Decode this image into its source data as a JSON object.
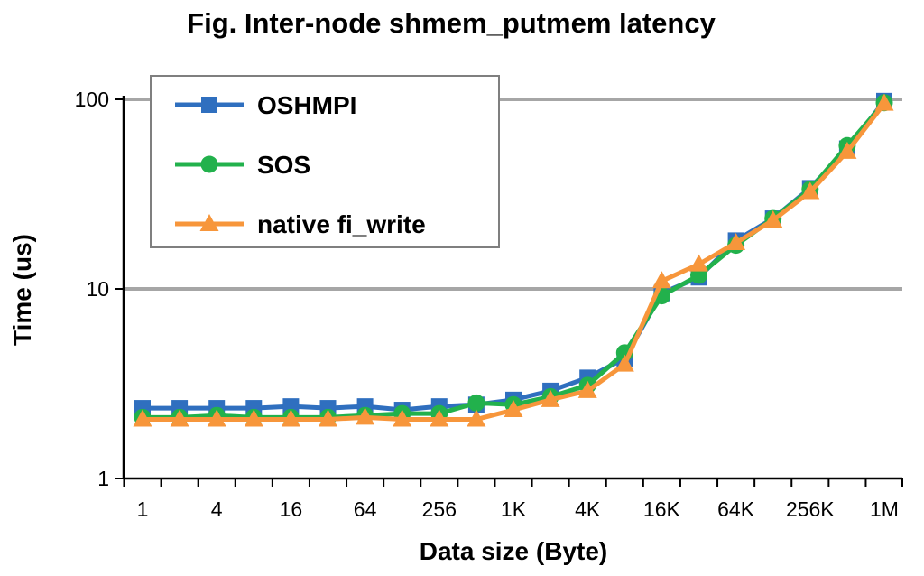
{
  "chart_data": {
    "type": "line",
    "title": "Fig. Inter-node shmem_putmem latency",
    "xlabel": "Data size (Byte)",
    "ylabel": "Time (us)",
    "yscale": "log",
    "ylim": [
      1,
      100
    ],
    "y_ticks": [
      1,
      10,
      100
    ],
    "y_tick_labels": [
      "1",
      "10",
      "100"
    ],
    "x_sizes": [
      "1",
      "2",
      "4",
      "8",
      "16",
      "32",
      "64",
      "128",
      "256",
      "512",
      "1K",
      "2K",
      "4K",
      "8K",
      "16K",
      "32K",
      "64K",
      "128K",
      "256K",
      "512K",
      "1M"
    ],
    "x_tick_labels": [
      "1",
      "4",
      "16",
      "64",
      "256",
      "1K",
      "4K",
      "16K",
      "64K",
      "256K",
      "1M"
    ],
    "grid": "horizontal",
    "legend_position": "top-left",
    "series": [
      {
        "name": "OSHMPI",
        "color": "#2f6fbf",
        "marker": "square",
        "values": [
          2.35,
          2.35,
          2.35,
          2.35,
          2.4,
          2.35,
          2.4,
          2.3,
          2.4,
          2.45,
          2.6,
          2.9,
          3.4,
          4.3,
          9.5,
          11.5,
          18,
          23.5,
          34,
          55,
          98
        ]
      },
      {
        "name": "SOS",
        "color": "#22b14c",
        "marker": "circle",
        "values": [
          2.1,
          2.1,
          2.15,
          2.1,
          2.1,
          2.1,
          2.15,
          2.2,
          2.2,
          2.5,
          2.45,
          2.7,
          3.1,
          4.6,
          9.2,
          11.8,
          17,
          23.5,
          33.5,
          57,
          96
        ]
      },
      {
        "name": "native fi_write",
        "color": "#f7963b",
        "marker": "triangle",
        "values": [
          2.05,
          2.05,
          2.05,
          2.05,
          2.05,
          2.05,
          2.1,
          2.05,
          2.05,
          2.05,
          2.3,
          2.6,
          2.9,
          4.0,
          11.0,
          13.5,
          17.5,
          23.0,
          32.5,
          53,
          95
        ]
      }
    ]
  }
}
